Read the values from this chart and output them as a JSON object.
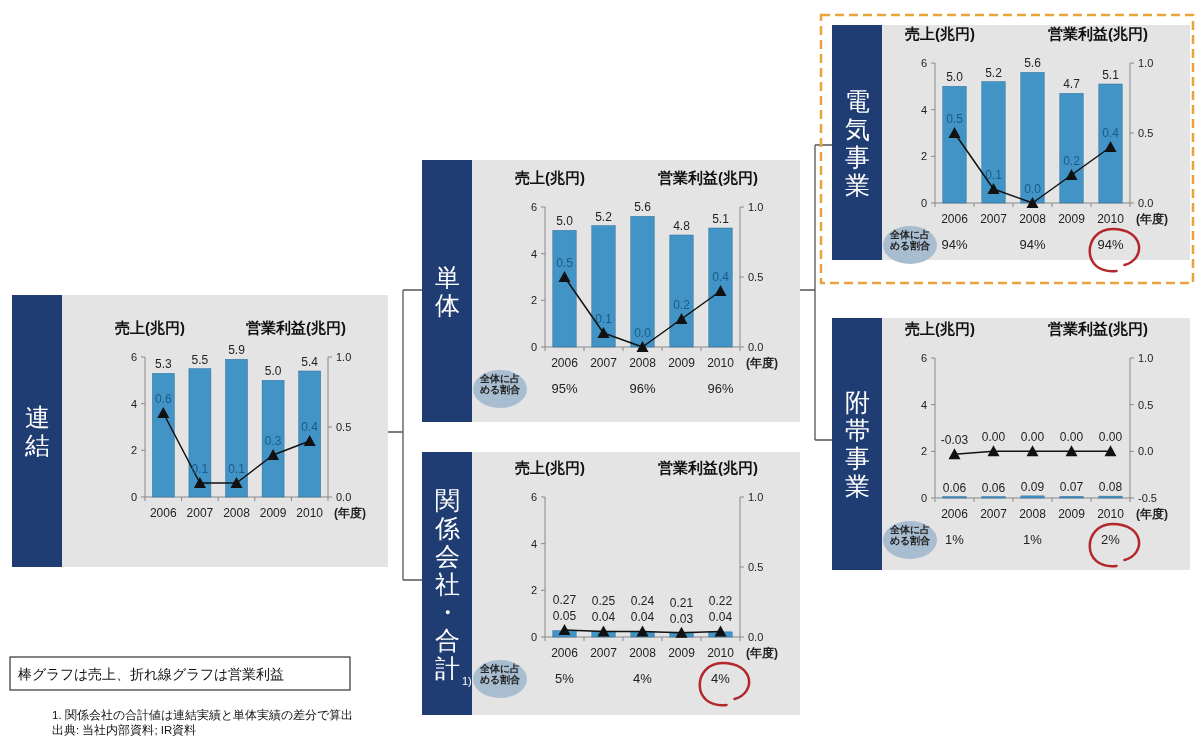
{
  "chart_data": [
    {
      "type": "bar",
      "title": "連結",
      "ylabel": "売上(兆円)",
      "y2label": "営業利益(兆円)",
      "xlabel": "(年度)",
      "categories": [
        "2006",
        "2007",
        "2008",
        "2009",
        "2010"
      ],
      "series": [
        {
          "type": "bar",
          "color": "#4294c6",
          "values": [
            5.3,
            5.5,
            5.9,
            5.0,
            5.4
          ],
          "value_labels": [
            "5.3",
            "5.5",
            "5.9",
            "5.0",
            "5.4"
          ]
        },
        {
          "type": "line",
          "axis": "y2",
          "color": "#111111",
          "marker": "triangle",
          "values": [
            0.6,
            0.1,
            0.1,
            0.3,
            0.4
          ],
          "value_labels": [
            "0.6",
            "0.1",
            "0.1",
            "0.3",
            "0.4"
          ]
        }
      ],
      "ylim": [
        0,
        6
      ],
      "yticks": [
        0,
        2,
        4,
        6
      ],
      "y2lim": [
        0,
        1.0
      ],
      "y2ticks": [
        {
          "value": 0,
          "label": "0.0"
        },
        {
          "value": 0.5,
          "label": "0.5"
        },
        {
          "value": 1.0,
          "label": "1.0"
        }
      ],
      "annotations": [
        "棒グラフは売上、折れ線グラフは営業利益",
        "1. 関係会社の合計値は連結実績と単体実績の差分で算出",
        "出典: 当社内部資料; IR資料"
      ]
    },
    {
      "type": "bar",
      "title": "単体",
      "ylabel": "売上(兆円)",
      "y2label": "営業利益(兆円)",
      "xlabel": "(年度)",
      "categories": [
        "2006",
        "2007",
        "2008",
        "2009",
        "2010"
      ],
      "series": [
        {
          "type": "bar",
          "color": "#4294c6",
          "values": [
            5.0,
            5.2,
            5.6,
            4.8,
            5.1
          ],
          "value_labels": [
            "5.0",
            "5.2",
            "5.6",
            "4.8",
            "5.1"
          ]
        },
        {
          "type": "line",
          "axis": "y2",
          "color": "#111111",
          "marker": "triangle",
          "values": [
            0.5,
            0.1,
            0.0,
            0.2,
            0.4
          ],
          "value_labels": [
            "0.5",
            "0.1",
            "0.0",
            "0.2",
            "0.4"
          ]
        }
      ],
      "ylim": [
        0,
        6
      ],
      "yticks": [
        0,
        2,
        4,
        6
      ],
      "y2lim": [
        0,
        1.0
      ],
      "y2ticks": [
        {
          "value": 0,
          "label": "0.0"
        },
        {
          "value": 0.5,
          "label": "0.5"
        },
        {
          "value": 1.0,
          "label": "1.0"
        }
      ],
      "annotations": [
        "全体に占める割合",
        "95%",
        "96%",
        "96%"
      ]
    },
    {
      "type": "bar",
      "title": "関係会社・合計$_{1)}$",
      "ylabel": "売上(兆円)",
      "y2label": "営業利益(兆円)",
      "xlabel": "(年度)",
      "categories": [
        "2006",
        "2007",
        "2008",
        "2009",
        "2010"
      ],
      "series": [
        {
          "type": "bar",
          "color": "#4294c6",
          "values": [
            0.27,
            0.25,
            0.24,
            0.21,
            0.22
          ],
          "value_labels": [
            "0.27",
            "0.25",
            "0.24",
            "0.21",
            "0.22"
          ]
        },
        {
          "type": "line",
          "axis": "y2",
          "color": "#111111",
          "marker": "triangle",
          "values": [
            0.05,
            0.04,
            0.04,
            0.03,
            0.04
          ],
          "value_labels": [
            "0.05",
            "0.04",
            "0.04",
            "0.03",
            "0.04"
          ]
        }
      ],
      "ylim": [
        0,
        6
      ],
      "yticks": [
        0,
        2,
        4,
        6
      ],
      "y2lim": [
        0,
        1.0
      ],
      "y2ticks": [
        {
          "value": 0,
          "label": "0.0"
        },
        {
          "value": 0.5,
          "label": "0.5"
        },
        {
          "value": 1.0,
          "label": "1.0"
        }
      ],
      "annotations": [
        "全体に占める割合",
        "5%",
        "4%",
        "4%"
      ]
    },
    {
      "type": "bar",
      "title": "電気事業",
      "ylabel": "売上(兆円)",
      "y2label": "営業利益(兆円)",
      "xlabel": "(年度)",
      "categories": [
        "2006",
        "2007",
        "2008",
        "2009",
        "2010"
      ],
      "series": [
        {
          "type": "bar",
          "color": "#4294c6",
          "values": [
            5.0,
            5.2,
            5.6,
            4.7,
            5.1
          ],
          "value_labels": [
            "5.0",
            "5.2",
            "5.6",
            "4.7",
            "5.1"
          ]
        },
        {
          "type": "line",
          "axis": "y2",
          "color": "#111111",
          "marker": "triangle",
          "values": [
            0.5,
            0.1,
            0.0,
            0.2,
            0.4
          ],
          "value_labels": [
            "0.5",
            "0.1",
            "0.0",
            "0.2",
            "0.4"
          ]
        }
      ],
      "ylim": [
        0,
        6
      ],
      "yticks": [
        0,
        2,
        4,
        6
      ],
      "y2lim": [
        0,
        1.0
      ],
      "y2ticks": [
        {
          "value": 0,
          "label": "0.0"
        },
        {
          "value": 0.5,
          "label": "0.5"
        },
        {
          "value": 1.0,
          "label": "1.0"
        }
      ],
      "annotations": [
        "全体に占める割合",
        "94%",
        "94%",
        "94%"
      ]
    },
    {
      "type": "bar",
      "title": "附帯事業",
      "ylabel": "売上(兆円)",
      "y2label": "営業利益(兆円)",
      "xlabel": "(年度)",
      "categories": [
        "2006",
        "2007",
        "2008",
        "2009",
        "2010"
      ],
      "series": [
        {
          "type": "bar",
          "color": "#4294c6",
          "values": [
            0.06,
            0.06,
            0.09,
            0.07,
            0.08
          ],
          "value_labels": [
            "0.06",
            "0.06",
            "0.09",
            "0.07",
            "0.08"
          ]
        },
        {
          "type": "line",
          "axis": "y2",
          "color": "#111111",
          "marker": "triangle",
          "values": [
            -0.03,
            0.0,
            0.0,
            0.0,
            0.0
          ],
          "value_labels": [
            "-0.03",
            "0.00",
            "0.00",
            "0.00",
            "0.00"
          ]
        }
      ],
      "ylim": [
        0,
        6
      ],
      "yticks": [
        0,
        2,
        4,
        6
      ],
      "y2lim": [
        -0.5,
        1.0
      ],
      "y2ticks": [
        {
          "value": -0.5,
          "label": "-0.5"
        },
        {
          "value": 0,
          "label": "0.0"
        },
        {
          "value": 0.5,
          "label": "0.5"
        },
        {
          "value": 1.0,
          "label": "1.0"
        }
      ],
      "annotations": [
        "全体に占める割合",
        "1%",
        "1%",
        "2%"
      ]
    }
  ]
}
